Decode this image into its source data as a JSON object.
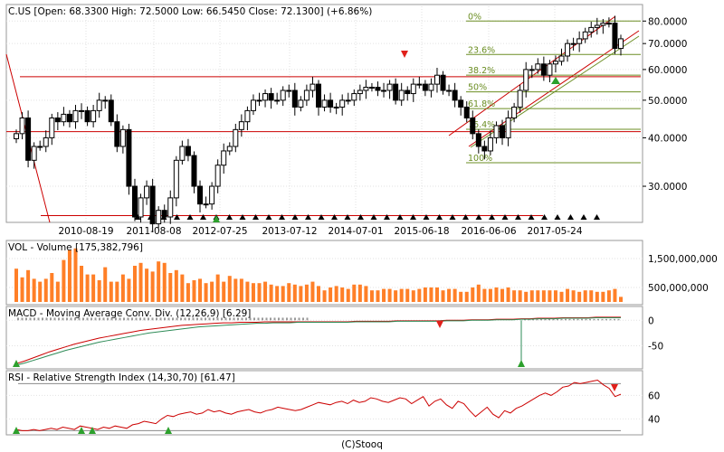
{
  "footer": "(C)Stooq",
  "price_panel": {
    "title": "C.US [Open: 68.3300  High: 72.5000  Low: 66.5450  Close: 72.1300] (+6.86%)",
    "y_ticks": [
      "80.0000",
      "70.0000",
      "60.0000",
      "50.0000",
      "40.0000",
      "30.0000"
    ],
    "x_ticks": [
      "2010-08-19",
      "2011-08-08",
      "2012-07-25",
      "2013-07-12",
      "2014-07-01",
      "2015-06-18",
      "2016-06-06",
      "2017-05-24"
    ],
    "fib_labels": [
      "0%",
      "23.6%",
      "38.2%",
      "50%",
      "61.8%",
      "76.4%",
      "100%"
    ]
  },
  "volume_panel": {
    "title": "VOL - Volume [175,382,796]",
    "y_ticks": [
      "1,500,000,000",
      "500,000,000"
    ]
  },
  "macd_panel": {
    "title": "MACD - Moving Average Conv. Div. (12,26,9) [6.29]",
    "y_ticks": [
      "0",
      "-50"
    ]
  },
  "rsi_panel": {
    "title": "RSI - Relative Strength Index (14,30,70) [61.47]",
    "y_ticks": [
      "60",
      "40"
    ]
  },
  "colors": {
    "up_candle": "#ffffff",
    "down_candle": "#000000",
    "volume": "#ff7f27",
    "level_line": "#cc0000",
    "fib_line": "#6b8e23",
    "macd_line": "#cc0000",
    "signal_line": "#2e8b57",
    "rsi_line": "#cc0000",
    "buy_arrow": "#2ca02c",
    "sell_arrow": "#e0201b"
  },
  "chart_data": [
    {
      "type": "candlestick",
      "title": "C.US [Open: 68.3300  High: 72.5000  Low: 66.5450  Close: 72.1300] (+6.86%)",
      "y_scale": "log",
      "ylim": [
        25,
        85
      ],
      "x_tick_labels": [
        "2010-08-19",
        "2011-08-08",
        "2012-07-25",
        "2013-07-12",
        "2014-07-01",
        "2015-06-18",
        "2016-06-06",
        "2017-05-24"
      ],
      "last_bar": {
        "open": 68.33,
        "high": 72.5,
        "low": 66.545,
        "close": 72.13,
        "change_pct": 6.86
      },
      "close_approx": [
        41,
        45,
        35,
        38,
        38,
        40,
        45,
        44,
        46,
        44,
        47,
        47,
        44,
        47,
        50,
        50,
        44,
        38,
        42,
        30,
        25,
        28,
        30,
        24,
        26,
        25,
        28,
        35,
        38,
        36,
        30,
        27,
        27,
        30,
        34,
        37,
        38,
        42,
        44,
        47,
        50,
        50,
        52,
        50,
        50,
        53,
        53,
        48,
        50,
        53,
        55,
        48,
        50,
        48,
        48,
        50,
        50,
        52,
        53,
        54,
        54,
        53,
        53,
        55,
        50,
        53,
        52,
        55,
        55,
        53,
        55,
        58,
        53,
        53,
        50,
        48,
        45,
        41,
        38,
        37,
        40,
        43,
        40,
        45,
        48,
        53,
        60,
        60,
        62,
        58,
        62,
        63,
        65,
        70,
        70,
        72,
        75,
        77,
        78,
        79,
        79,
        68,
        72
      ],
      "levels": [
        57.5,
        41.5,
        25.2
      ],
      "fibonacci": {
        "high": 80.0,
        "low": 34.5,
        "labels": [
          "0%",
          "23.6%",
          "38.2%",
          "50%",
          "61.8%",
          "76.4%",
          "100%"
        ]
      }
    },
    {
      "type": "bar",
      "title": "VOL - Volume [175,382,796]",
      "last_value": 175382796,
      "y_tick_labels": [
        "1,500,000,000",
        "500,000,000"
      ],
      "ylim": [
        0,
        2000000000
      ],
      "values_approx": [
        1150,
        850,
        1100,
        800,
        700,
        800,
        1000,
        700,
        1450,
        1800,
        1850,
        1250,
        950,
        950,
        750,
        1200,
        700,
        700,
        950,
        800,
        1250,
        1350,
        1150,
        1050,
        1400,
        1350,
        1000,
        1100,
        950,
        650,
        750,
        800,
        650,
        700,
        950,
        700,
        900,
        800,
        800,
        700,
        650,
        650,
        700,
        600,
        550,
        550,
        650,
        600,
        550,
        600,
        700,
        550,
        400,
        500,
        550,
        500,
        450,
        600,
        600,
        550,
        400,
        400,
        450,
        450,
        400,
        450,
        450,
        400,
        450,
        500,
        500,
        500,
        400,
        450,
        450,
        350,
        350,
        500,
        600,
        450,
        450,
        500,
        450,
        500,
        400,
        400,
        350,
        400,
        400,
        400,
        400,
        400,
        350,
        450,
        400,
        350,
        400,
        400,
        350,
        350,
        400,
        450,
        175
      ]
    },
    {
      "type": "line",
      "title": "MACD - Moving Average Conv. Div. (12,26,9) [6.29]",
      "y_tick_labels": [
        "0",
        "-50"
      ],
      "ylim": [
        -90,
        20
      ],
      "last_value": 6.29,
      "series": [
        {
          "values_approx": [
            -85,
            -80,
            -74,
            -68,
            -62,
            -57,
            -52,
            -47,
            -43,
            -39,
            -35,
            -32,
            -29,
            -26,
            -23,
            -20,
            -18,
            -16,
            -14,
            -12,
            -10,
            -9,
            -8,
            -7,
            -6,
            -5,
            -5,
            -4,
            -4,
            -4,
            -3,
            -3,
            -3,
            -3,
            -3,
            -3,
            -3,
            -3,
            -3,
            -3,
            -3,
            -2,
            -2,
            -2,
            -2,
            -2,
            -1,
            -1,
            -1,
            -1,
            -1,
            -1,
            0,
            0,
            0,
            1,
            1,
            1,
            2,
            2,
            2,
            3,
            3,
            4,
            4,
            4,
            5,
            5,
            5,
            5,
            6,
            6,
            6,
            6
          ]
        },
        {
          "values_approx": [
            -88,
            -84,
            -79,
            -74,
            -69,
            -64,
            -59,
            -55,
            -51,
            -47,
            -43,
            -40,
            -37,
            -34,
            -31,
            -28,
            -25,
            -23,
            -21,
            -19,
            -17,
            -15,
            -13,
            -12,
            -11,
            -10,
            -9,
            -8,
            -7,
            -6,
            -6,
            -5,
            -5,
            -5,
            -4,
            -4,
            -4,
            -4,
            -4,
            -4,
            -4,
            -3,
            -3,
            -3,
            -3,
            -3,
            -2,
            -2,
            -2,
            -2,
            -2,
            -2,
            -1,
            -1,
            -1,
            0,
            0,
            0,
            1,
            1,
            1,
            2,
            2,
            3,
            3,
            3,
            4,
            4,
            4,
            4,
            5,
            5,
            5,
            5
          ]
        }
      ]
    },
    {
      "type": "line",
      "title": "RSI - Relative Strength Index (14,30,70) [61.47]",
      "y_tick_labels": [
        "60",
        "40"
      ],
      "ylim": [
        28,
        78
      ],
      "bands": [
        30,
        70
      ],
      "last_value": 61.47,
      "series": [
        {
          "values_approx": [
            31,
            30,
            30,
            31,
            30,
            31,
            32,
            31,
            33,
            32,
            31,
            34,
            33,
            32,
            31,
            33,
            32,
            34,
            33,
            32,
            35,
            36,
            38,
            37,
            36,
            40,
            43,
            42,
            44,
            45,
            46,
            44,
            45,
            48,
            46,
            47,
            45,
            44,
            46,
            47,
            48,
            46,
            45,
            47,
            48,
            50,
            49,
            48,
            47,
            48,
            50,
            52,
            54,
            53,
            52,
            54,
            55,
            53,
            56,
            54,
            55,
            58,
            57,
            55,
            54,
            56,
            58,
            57,
            53,
            56,
            59,
            51,
            55,
            57,
            52,
            49,
            55,
            53,
            47,
            42,
            46,
            50,
            44,
            41,
            47,
            45,
            49,
            51,
            54,
            57,
            60,
            62,
            60,
            63,
            67,
            68,
            71,
            70,
            71,
            72,
            73,
            69,
            66,
            59,
            61
          ]
        }
      ]
    }
  ]
}
